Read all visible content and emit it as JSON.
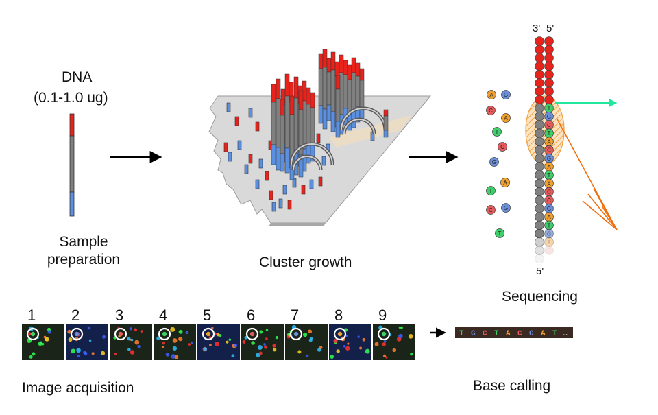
{
  "labels": {
    "dna_title": "DNA",
    "dna_amount": "(0.1-1.0 ug)",
    "sample_prep": "Sample\npreparation",
    "cluster_growth": "Cluster growth",
    "sequencing": "Sequencing",
    "image_acquisition": "Image acquisition",
    "base_calling": "Base calling"
  },
  "strand": {
    "top_3prime": "3'",
    "top_5prime": "5'",
    "bottom_5prime": "5'"
  },
  "nucleotides_free": [
    "A",
    "G",
    "C",
    "A",
    "T",
    "C",
    "G",
    "A",
    "T",
    "C",
    "G",
    "T"
  ],
  "template_bases": [
    "T",
    "G",
    "C",
    "T",
    "A",
    "C",
    "G",
    "A",
    "T",
    "A",
    "C",
    "C",
    "G",
    "A",
    "T",
    "G",
    "A",
    "C"
  ],
  "frames": [
    "1",
    "2",
    "3",
    "4",
    "5",
    "6",
    "7",
    "8",
    "9"
  ],
  "base_calls": [
    "T",
    "G",
    "C",
    "T",
    "A",
    "C",
    "G",
    "A",
    "T"
  ],
  "base_calls_suffix": "…",
  "colors": {
    "A": "#f0a030",
    "C": "#e55b5b",
    "G": "#6a8fd8",
    "T": "#3fcf6a",
    "strand_red": "#e8231c",
    "strand_gray": "#808080",
    "strand_blue": "#5b8fe0",
    "emission_green": "#21e89c",
    "excitation_orange": "#f07010",
    "base_strip_bg": "#3b2a22"
  }
}
